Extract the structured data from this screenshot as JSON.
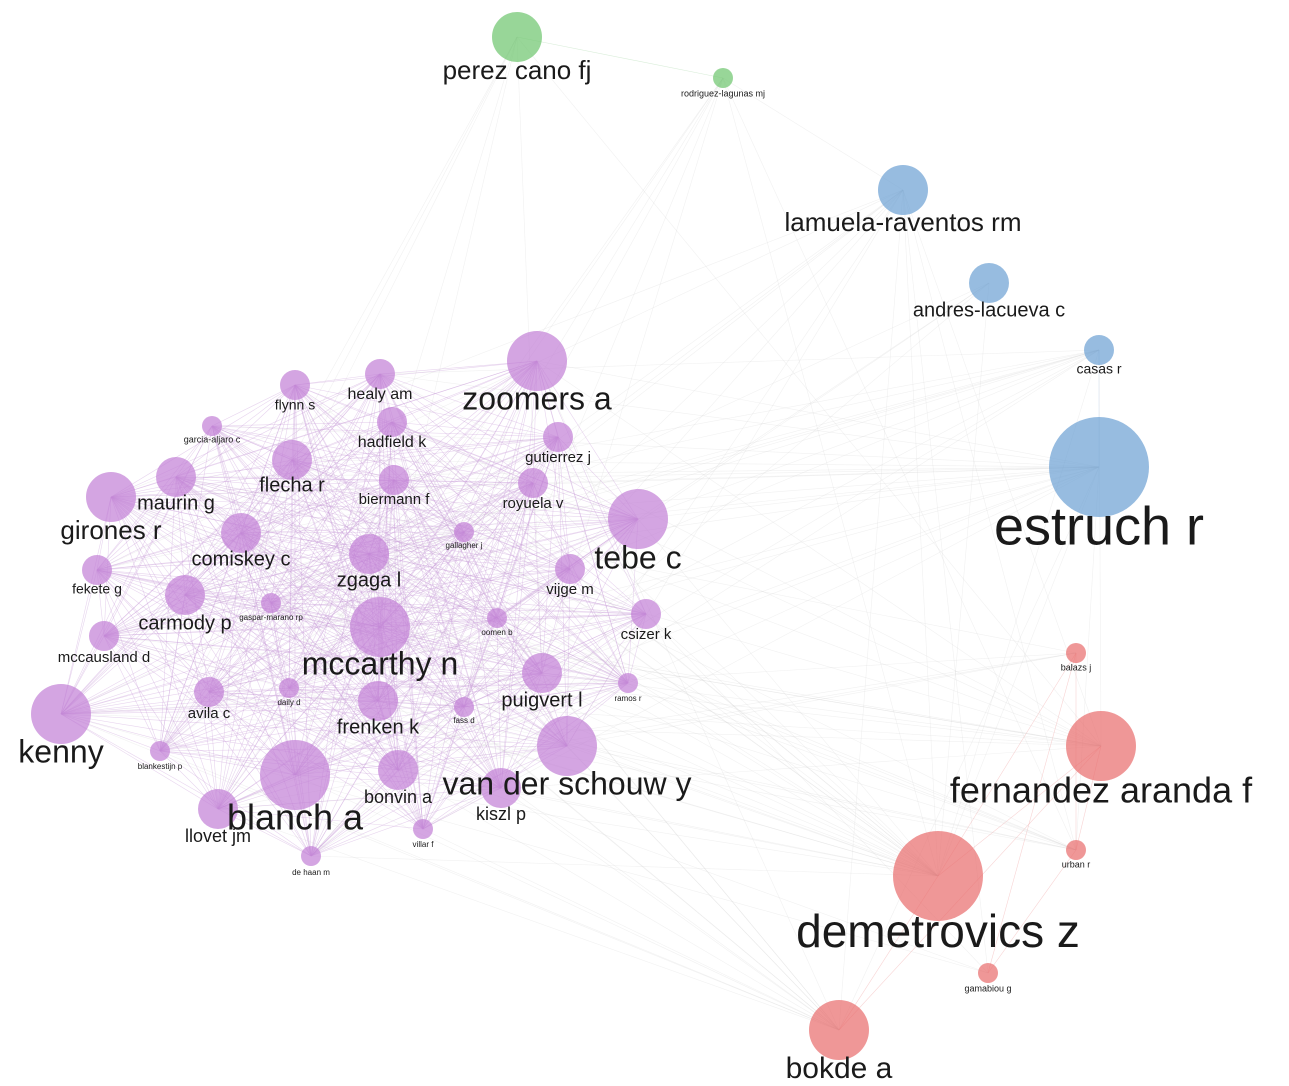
{
  "nodes": [
    {
      "label": "perez cano fj"
    },
    {
      "label": "rodriguez-lagunas mj"
    },
    {
      "label": "lamuela-raventos rm"
    },
    {
      "label": "andres-lacueva c"
    },
    {
      "label": "casas r"
    },
    {
      "label": "estruch r"
    },
    {
      "label": "balazs j"
    },
    {
      "label": "fernandez aranda f"
    },
    {
      "label": "urban r"
    },
    {
      "label": "demetrovics z"
    },
    {
      "label": "gamabiou g"
    },
    {
      "label": "bokde a"
    },
    {
      "label": "zoomers a"
    },
    {
      "label": "healy am"
    },
    {
      "label": "flynn s"
    },
    {
      "label": "hadfield k"
    },
    {
      "label": "garcia-aljaro c"
    },
    {
      "label": "gutierrez j"
    },
    {
      "label": "flecha r"
    },
    {
      "label": "maurin g"
    },
    {
      "label": "biermann f"
    },
    {
      "label": "royuela v"
    },
    {
      "label": "girones r"
    },
    {
      "label": "comiskey c"
    },
    {
      "label": "gallagher j"
    },
    {
      "label": "tebe c"
    },
    {
      "label": "zgaga l"
    },
    {
      "label": "vijge m"
    },
    {
      "label": "fekete g"
    },
    {
      "label": "carmody p"
    },
    {
      "label": "gaspar-marano rp"
    },
    {
      "label": "csizer k"
    },
    {
      "label": "mccarthy n"
    },
    {
      "label": "oomen b"
    },
    {
      "label": "mccausland d"
    },
    {
      "label": "puigvert l"
    },
    {
      "label": "ramos r"
    },
    {
      "label": "daily d"
    },
    {
      "label": "avila c"
    },
    {
      "label": "frenken k"
    },
    {
      "label": "fass d"
    },
    {
      "label": "kenny"
    },
    {
      "label": "van der schouw y"
    },
    {
      "label": "blankestijn p"
    },
    {
      "label": "blanch a"
    },
    {
      "label": "bonvin a"
    },
    {
      "label": "kiszl p"
    },
    {
      "label": "llovet jm"
    },
    {
      "label": "villar f"
    },
    {
      "label": "de haan m"
    }
  ]
}
